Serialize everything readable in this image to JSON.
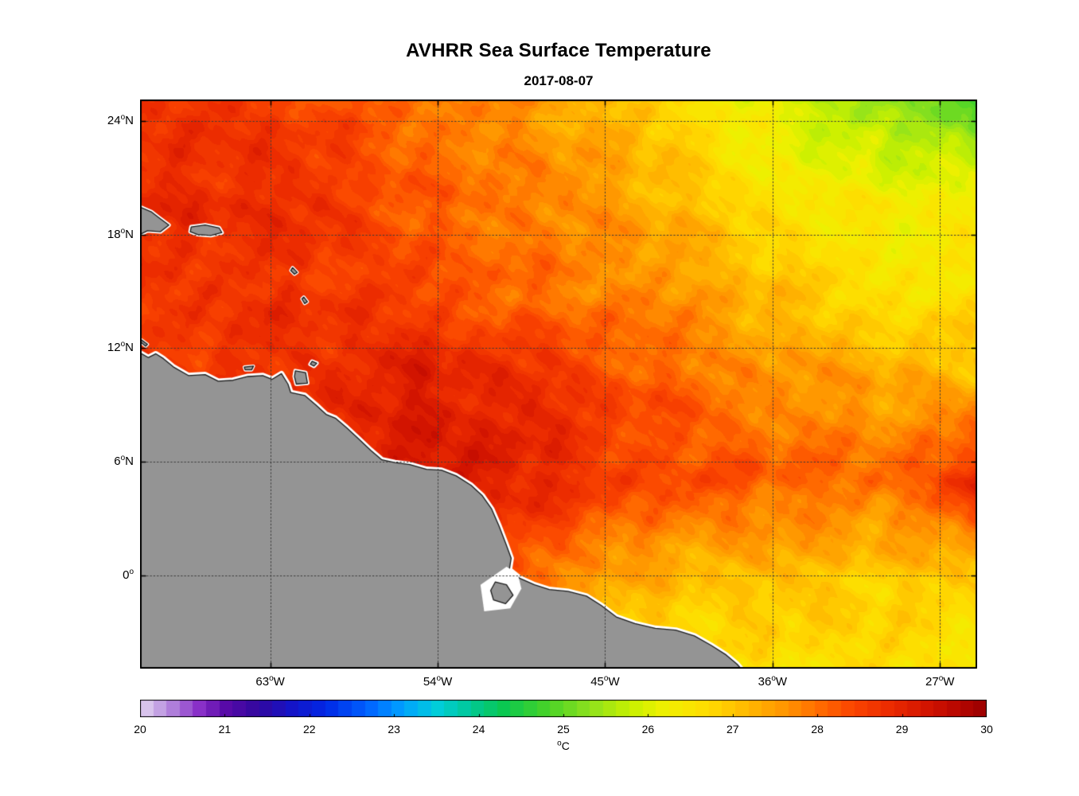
{
  "figure": {
    "title": "AVHRR Sea Surface Temperature",
    "subtitle": "2017-08-07"
  },
  "chart_data": {
    "type": "heatmap",
    "title": "AVHRR Sea Surface Temperature",
    "subtitle": "2017-08-07",
    "variable": "sea surface temperature",
    "lon_range_deg_east": [
      -70.0,
      -25.0
    ],
    "lat_range_deg_north": [
      -4.93,
      25.13
    ],
    "x_ticks": [
      {
        "lon": -63,
        "num": "63",
        "sup": "o",
        "dir": "W"
      },
      {
        "lon": -54,
        "num": "54",
        "sup": "o",
        "dir": "W"
      },
      {
        "lon": -45,
        "num": "45",
        "sup": "o",
        "dir": "W"
      },
      {
        "lon": -36,
        "num": "36",
        "sup": "o",
        "dir": "W"
      },
      {
        "lon": -27,
        "num": "27",
        "sup": "o",
        "dir": "W"
      }
    ],
    "y_ticks": [
      {
        "lat": 24,
        "num": "24",
        "sup": "o",
        "dir": "N"
      },
      {
        "lat": 18,
        "num": "18",
        "sup": "o",
        "dir": "N"
      },
      {
        "lat": 12,
        "num": "12",
        "sup": "o",
        "dir": "N"
      },
      {
        "lat": 6,
        "num": "6",
        "sup": "o",
        "dir": "N"
      },
      {
        "lat": 0,
        "num": "0",
        "sup": "o",
        "dir": ""
      }
    ],
    "grid_style": {
      "line": "dotted",
      "color": "#3a3a3a"
    },
    "grid": {
      "lons": [
        -70,
        -65,
        -60,
        -55,
        -50,
        -45,
        -40,
        -35,
        -30,
        -25
      ],
      "lats": [
        25,
        20,
        15,
        10,
        5,
        0,
        -5
      ],
      "sst_c": [
        [
          28.7,
          28.6,
          28.4,
          28.1,
          27.7,
          27.1,
          26.5,
          25.9,
          25.4,
          24.8
        ],
        [
          28.9,
          28.8,
          28.6,
          28.2,
          27.9,
          27.5,
          27.0,
          26.6,
          26.3,
          26.2
        ],
        [
          28.8,
          28.8,
          28.6,
          28.4,
          28.1,
          27.8,
          27.4,
          27.0,
          26.7,
          26.5
        ],
        [
          28.5,
          28.7,
          29.0,
          29.2,
          28.8,
          28.4,
          28.1,
          27.7,
          27.4,
          27.2
        ],
        [
          28.6,
          28.6,
          28.8,
          29.0,
          29.1,
          28.7,
          28.4,
          28.1,
          28.0,
          29.0
        ],
        [
          28.5,
          28.5,
          28.5,
          28.4,
          28.1,
          27.5,
          27.1,
          27.0,
          26.9,
          27.1
        ],
        [
          28.0,
          28.0,
          28.0,
          27.8,
          27.3,
          26.8,
          26.6,
          26.6,
          26.5,
          26.4
        ]
      ]
    },
    "colormap": {
      "levels": 64,
      "stops": [
        {
          "value": 20.0,
          "color": "#e2d4f0"
        },
        {
          "value": 20.35,
          "color": "#b488dc"
        },
        {
          "value": 20.7,
          "color": "#8a30c8"
        },
        {
          "value": 21.0,
          "color": "#5a0aa8"
        },
        {
          "value": 21.4,
          "color": "#31079e"
        },
        {
          "value": 21.8,
          "color": "#1414c8"
        },
        {
          "value": 22.2,
          "color": "#0028e6"
        },
        {
          "value": 22.7,
          "color": "#0064ff"
        },
        {
          "value": 23.1,
          "color": "#00a0ff"
        },
        {
          "value": 23.5,
          "color": "#00cddc"
        },
        {
          "value": 23.9,
          "color": "#00c896"
        },
        {
          "value": 24.3,
          "color": "#0ac850"
        },
        {
          "value": 24.8,
          "color": "#46d228"
        },
        {
          "value": 25.3,
          "color": "#8ce11e"
        },
        {
          "value": 25.8,
          "color": "#c8f000"
        },
        {
          "value": 26.2,
          "color": "#f0f000"
        },
        {
          "value": 26.7,
          "color": "#ffdc00"
        },
        {
          "value": 27.1,
          "color": "#ffbe00"
        },
        {
          "value": 27.6,
          "color": "#ff9600"
        },
        {
          "value": 28.0,
          "color": "#ff6e00"
        },
        {
          "value": 28.4,
          "color": "#fb4600"
        },
        {
          "value": 28.9,
          "color": "#e92800"
        },
        {
          "value": 29.3,
          "color": "#d21400"
        },
        {
          "value": 29.7,
          "color": "#b40500"
        },
        {
          "value": 30.0,
          "color": "#990000"
        }
      ]
    },
    "colorbar": {
      "min": 20,
      "max": 30,
      "ticks": [
        "20",
        "21",
        "22",
        "23",
        "24",
        "25",
        "26",
        "27",
        "28",
        "29",
        "30"
      ],
      "label": {
        "sup": "o",
        "text": "C"
      }
    },
    "land": {
      "fill_color": "#949494",
      "coast_halo_color": "#ffffff",
      "coast_line_color": "#1a1a1a",
      "mainland": [
        [
          -70.6,
          12.0
        ],
        [
          -70.0,
          11.75
        ],
        [
          -69.55,
          11.5
        ],
        [
          -69.15,
          11.7
        ],
        [
          -68.75,
          11.45
        ],
        [
          -68.2,
          11.0
        ],
        [
          -67.4,
          10.55
        ],
        [
          -66.5,
          10.6
        ],
        [
          -65.8,
          10.25
        ],
        [
          -65.0,
          10.3
        ],
        [
          -64.2,
          10.5
        ],
        [
          -63.4,
          10.55
        ],
        [
          -62.9,
          10.35
        ],
        [
          -62.4,
          10.65
        ],
        [
          -62.05,
          10.1
        ],
        [
          -61.9,
          9.65
        ],
        [
          -61.15,
          9.5
        ],
        [
          -60.55,
          9.0
        ],
        [
          -60.0,
          8.5
        ],
        [
          -59.5,
          8.3
        ],
        [
          -58.9,
          7.8
        ],
        [
          -58.3,
          7.25
        ],
        [
          -57.6,
          6.6
        ],
        [
          -57.0,
          6.1
        ],
        [
          -56.3,
          5.95
        ],
        [
          -55.5,
          5.85
        ],
        [
          -54.6,
          5.6
        ],
        [
          -53.8,
          5.55
        ],
        [
          -53.0,
          5.25
        ],
        [
          -52.2,
          4.75
        ],
        [
          -51.6,
          4.2
        ],
        [
          -51.1,
          3.5
        ],
        [
          -50.7,
          2.6
        ],
        [
          -50.35,
          1.7
        ],
        [
          -50.05,
          0.9
        ],
        [
          -50.15,
          0.3
        ],
        [
          -49.6,
          -0.15
        ],
        [
          -48.8,
          -0.5
        ],
        [
          -48.0,
          -0.75
        ],
        [
          -47.0,
          -0.85
        ],
        [
          -46.0,
          -1.1
        ],
        [
          -45.2,
          -1.6
        ],
        [
          -44.4,
          -2.2
        ],
        [
          -43.4,
          -2.55
        ],
        [
          -42.3,
          -2.8
        ],
        [
          -41.2,
          -2.9
        ],
        [
          -40.2,
          -3.2
        ],
        [
          -39.3,
          -3.7
        ],
        [
          -38.5,
          -4.2
        ],
        [
          -37.9,
          -4.7
        ],
        [
          -37.55,
          -5.1
        ],
        [
          -37.3,
          -5.8
        ],
        [
          -70.6,
          -5.8
        ]
      ],
      "river_gap": [
        [
          -50.3,
          0.45
        ],
        [
          -51.7,
          -0.5
        ],
        [
          -51.5,
          -1.9
        ],
        [
          -50.1,
          -1.75
        ],
        [
          -49.5,
          -0.7
        ],
        [
          -49.7,
          0.1
        ]
      ],
      "islands": [
        {
          "name": "hispaniola",
          "points": [
            [
              -70.8,
              19.6
            ],
            [
              -70.0,
              19.45
            ],
            [
              -69.4,
              19.2
            ],
            [
              -69.0,
              18.9
            ],
            [
              -68.45,
              18.5
            ],
            [
              -68.9,
              18.15
            ],
            [
              -69.6,
              18.2
            ],
            [
              -70.2,
              17.9
            ],
            [
              -70.8,
              18.0
            ]
          ]
        },
        {
          "name": "puerto-rico",
          "points": [
            [
              -67.25,
              18.4
            ],
            [
              -66.5,
              18.5
            ],
            [
              -65.75,
              18.35
            ],
            [
              -65.6,
              18.1
            ],
            [
              -66.2,
              17.95
            ],
            [
              -66.9,
              18.0
            ],
            [
              -67.3,
              18.15
            ]
          ]
        },
        {
          "name": "trinidad",
          "points": [
            [
              -61.65,
              10.8
            ],
            [
              -61.1,
              10.7
            ],
            [
              -61.0,
              10.15
            ],
            [
              -61.6,
              10.1
            ],
            [
              -61.7,
              10.5
            ]
          ]
        },
        {
          "name": "tobago",
          "points": [
            [
              -60.75,
              11.3
            ],
            [
              -60.5,
              11.2
            ],
            [
              -60.65,
              11.05
            ],
            [
              -60.85,
              11.15
            ]
          ]
        },
        {
          "name": "marajo",
          "points": [
            [
              -50.9,
              -0.35
            ],
            [
              -50.3,
              -0.5
            ],
            [
              -49.95,
              -1.05
            ],
            [
              -50.35,
              -1.5
            ],
            [
              -51.0,
              -1.3
            ],
            [
              -51.15,
              -0.8
            ]
          ]
        }
      ],
      "islets": [
        {
          "name": "guadeloupe",
          "points": [
            [
              -61.8,
              16.25
            ],
            [
              -61.55,
              16.0
            ],
            [
              -61.7,
              15.9
            ],
            [
              -61.9,
              16.1
            ]
          ]
        },
        {
          "name": "martinique",
          "points": [
            [
              -61.2,
              14.7
            ],
            [
              -61.0,
              14.45
            ],
            [
              -61.15,
              14.35
            ],
            [
              -61.3,
              14.6
            ]
          ]
        },
        {
          "name": "margarita",
          "points": [
            [
              -64.4,
              11.0
            ],
            [
              -63.9,
              11.05
            ],
            [
              -64.0,
              10.85
            ],
            [
              -64.35,
              10.85
            ]
          ]
        },
        {
          "name": "curacao",
          "points": [
            [
              -69.95,
              12.45
            ],
            [
              -69.6,
              12.2
            ],
            [
              -69.7,
              12.1
            ],
            [
              -70.0,
              12.35
            ]
          ]
        }
      ]
    }
  }
}
